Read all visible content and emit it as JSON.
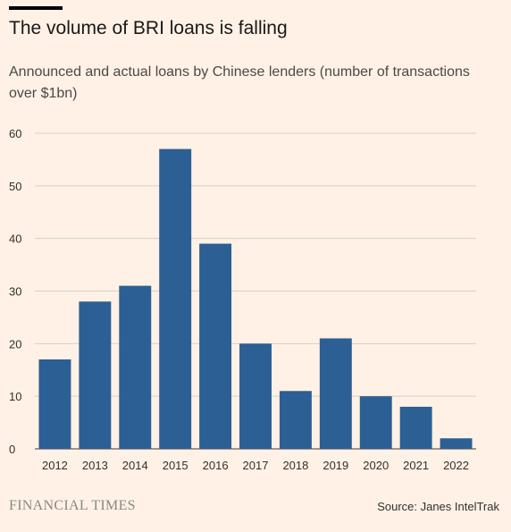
{
  "header": {
    "title": "The volume of BRI loans is falling",
    "subtitle": "Announced and actual loans by Chinese lenders (number of transactions over $1bn)"
  },
  "footer": {
    "brand": "FINANCIAL TIMES",
    "source": "Source: Janes IntelTrak"
  },
  "colors": {
    "background": "#fff1e5",
    "bar": "#2c5f93",
    "grid": "#d9cec4",
    "text": "#33302e"
  },
  "chart_data": {
    "type": "bar",
    "title": "The volume of BRI loans is falling",
    "subtitle": "Announced and actual loans by Chinese lenders (number of transactions over $1bn)",
    "xlabel": "",
    "ylabel": "",
    "categories": [
      "2012",
      "2013",
      "2014",
      "2015",
      "2016",
      "2017",
      "2018",
      "2019",
      "2020",
      "2021",
      "2022"
    ],
    "values": [
      17,
      28,
      31,
      57,
      39,
      20,
      11,
      21,
      10,
      8,
      2
    ],
    "ylim": [
      0,
      60
    ],
    "yticks": [
      0,
      10,
      20,
      30,
      40,
      50,
      60
    ],
    "grid": true,
    "legend": "none"
  }
}
